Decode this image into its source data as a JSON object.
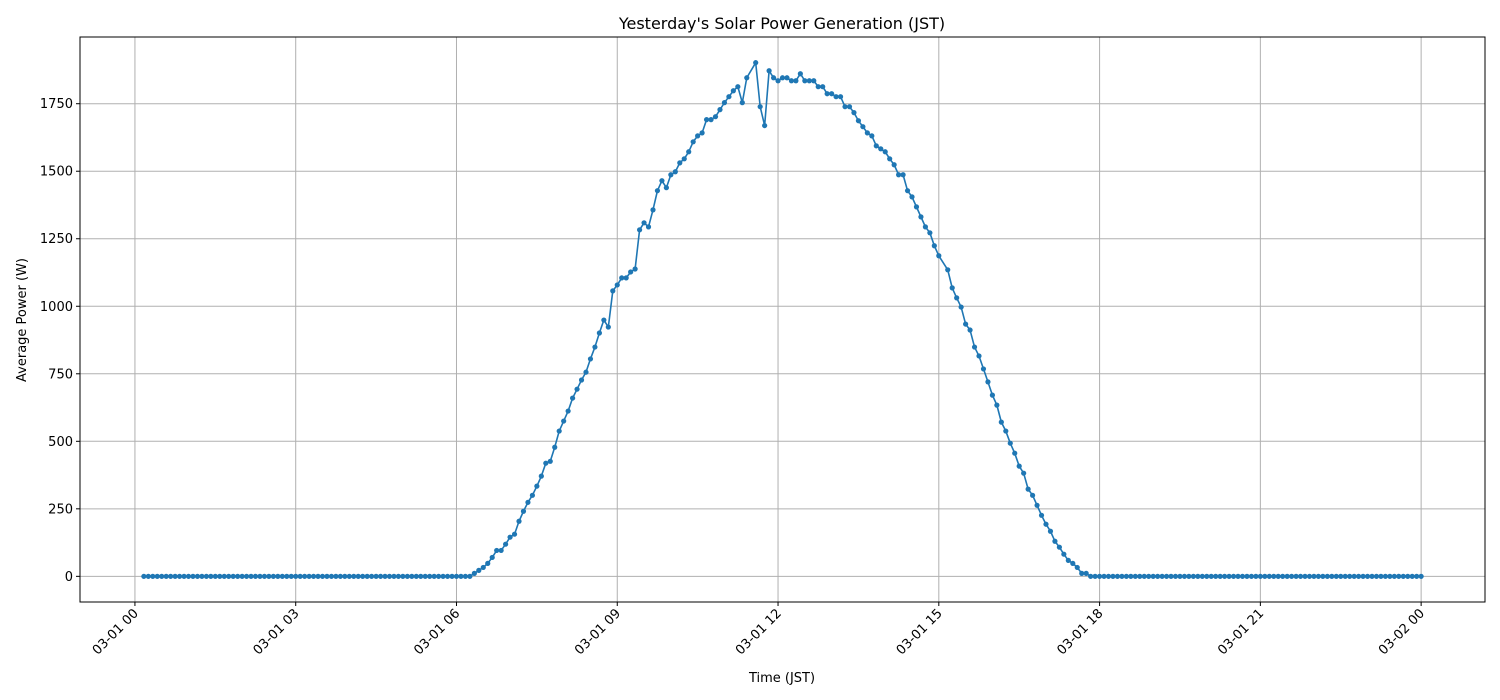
{
  "chart_data": {
    "type": "line",
    "title": "Yesterday's Solar Power Generation (JST)",
    "xlabel": "Time (JST)",
    "ylabel": "Average Power (W)",
    "grid": true,
    "marker": "circle",
    "line_color": "#1f77b4",
    "ylim": [
      -95,
      1997
    ],
    "yticks": [
      0,
      250,
      500,
      750,
      1000,
      1250,
      1500,
      1750
    ],
    "xticks": [
      "03-01 00",
      "03-01 03",
      "03-01 06",
      "03-01 09",
      "03-01 12",
      "03-01 15",
      "03-01 18",
      "03-01 21",
      "03-02 00"
    ],
    "series": [
      {
        "points": [
          [
            "03-01 00:10",
            0
          ],
          [
            "03-01 00:15",
            0
          ],
          [
            "03-01 00:20",
            0
          ],
          [
            "03-01 00:25",
            0
          ],
          [
            "03-01 00:30",
            0
          ],
          [
            "03-01 00:35",
            0
          ],
          [
            "03-01 00:40",
            0
          ],
          [
            "03-01 00:45",
            0
          ],
          [
            "03-01 00:50",
            0
          ],
          [
            "03-01 00:55",
            0
          ],
          [
            "03-01 01:00",
            0
          ],
          [
            "03-01 01:05",
            0
          ],
          [
            "03-01 01:10",
            0
          ],
          [
            "03-01 01:15",
            0
          ],
          [
            "03-01 01:20",
            0
          ],
          [
            "03-01 01:25",
            0
          ],
          [
            "03-01 01:30",
            0
          ],
          [
            "03-01 01:35",
            0
          ],
          [
            "03-01 01:40",
            0
          ],
          [
            "03-01 01:45",
            0
          ],
          [
            "03-01 01:50",
            0
          ],
          [
            "03-01 01:55",
            0
          ],
          [
            "03-01 02:00",
            0
          ],
          [
            "03-01 02:05",
            0
          ],
          [
            "03-01 02:10",
            0
          ],
          [
            "03-01 02:15",
            0
          ],
          [
            "03-01 02:20",
            0
          ],
          [
            "03-01 02:25",
            0
          ],
          [
            "03-01 02:30",
            0
          ],
          [
            "03-01 02:35",
            0
          ],
          [
            "03-01 02:40",
            0
          ],
          [
            "03-01 02:45",
            0
          ],
          [
            "03-01 02:50",
            0
          ],
          [
            "03-01 02:55",
            0
          ],
          [
            "03-01 03:00",
            0
          ],
          [
            "03-01 03:05",
            0
          ],
          [
            "03-01 03:10",
            0
          ],
          [
            "03-01 03:15",
            0
          ],
          [
            "03-01 03:20",
            0
          ],
          [
            "03-01 03:25",
            0
          ],
          [
            "03-01 03:30",
            0
          ],
          [
            "03-01 03:35",
            0
          ],
          [
            "03-01 03:40",
            0
          ],
          [
            "03-01 03:45",
            0
          ],
          [
            "03-01 03:50",
            0
          ],
          [
            "03-01 03:55",
            0
          ],
          [
            "03-01 04:00",
            0
          ],
          [
            "03-01 04:05",
            0
          ],
          [
            "03-01 04:10",
            0
          ],
          [
            "03-01 04:15",
            0
          ],
          [
            "03-01 04:20",
            0
          ],
          [
            "03-01 04:25",
            0
          ],
          [
            "03-01 04:30",
            0
          ],
          [
            "03-01 04:35",
            0
          ],
          [
            "03-01 04:40",
            0
          ],
          [
            "03-01 04:45",
            0
          ],
          [
            "03-01 04:50",
            0
          ],
          [
            "03-01 04:55",
            0
          ],
          [
            "03-01 05:00",
            0
          ],
          [
            "03-01 05:05",
            0
          ],
          [
            "03-01 05:10",
            0
          ],
          [
            "03-01 05:15",
            0
          ],
          [
            "03-01 05:20",
            0
          ],
          [
            "03-01 05:25",
            0
          ],
          [
            "03-01 05:30",
            0
          ],
          [
            "03-01 05:35",
            0
          ],
          [
            "03-01 05:40",
            0
          ],
          [
            "03-01 05:45",
            0
          ],
          [
            "03-01 05:50",
            0
          ],
          [
            "03-01 05:55",
            0
          ],
          [
            "03-01 06:00",
            0
          ],
          [
            "03-01 06:05",
            0
          ],
          [
            "03-01 06:10",
            0
          ],
          [
            "03-01 06:15",
            0
          ],
          [
            "03-01 06:20",
            11
          ],
          [
            "03-01 06:25",
            22
          ],
          [
            "03-01 06:30",
            33
          ],
          [
            "03-01 06:35",
            48
          ],
          [
            "03-01 06:40",
            70
          ],
          [
            "03-01 06:45",
            96
          ],
          [
            "03-01 06:50",
            96
          ],
          [
            "03-01 06:55",
            119
          ],
          [
            "03-01 07:00",
            145
          ],
          [
            "03-01 07:05",
            156
          ],
          [
            "03-01 07:10",
            204
          ],
          [
            "03-01 07:15",
            241
          ],
          [
            "03-01 07:20",
            274
          ],
          [
            "03-01 07:25",
            300
          ],
          [
            "03-01 07:30",
            334
          ],
          [
            "03-01 07:35",
            371
          ],
          [
            "03-01 07:40",
            419
          ],
          [
            "03-01 07:45",
            426
          ],
          [
            "03-01 07:50",
            478
          ],
          [
            "03-01 07:55",
            538
          ],
          [
            "03-01 08:00",
            575
          ],
          [
            "03-01 08:05",
            612
          ],
          [
            "03-01 08:10",
            660
          ],
          [
            "03-01 08:15",
            693
          ],
          [
            "03-01 08:20",
            727
          ],
          [
            "03-01 08:25",
            756
          ],
          [
            "03-01 08:30",
            805
          ],
          [
            "03-01 08:35",
            849
          ],
          [
            "03-01 08:40",
            901
          ],
          [
            "03-01 08:45",
            949
          ],
          [
            "03-01 08:50",
            923
          ],
          [
            "03-01 08:55",
            1057
          ],
          [
            "03-01 09:00",
            1079
          ],
          [
            "03-01 09:05",
            1105
          ],
          [
            "03-01 09:10",
            1105
          ],
          [
            "03-01 09:15",
            1127
          ],
          [
            "03-01 09:20",
            1138
          ],
          [
            "03-01 09:25",
            1283
          ],
          [
            "03-01 09:30",
            1309
          ],
          [
            "03-01 09:35",
            1294
          ],
          [
            "03-01 09:40",
            1357
          ],
          [
            "03-01 09:45",
            1428
          ],
          [
            "03-01 09:50",
            1465
          ],
          [
            "03-01 09:55",
            1439
          ],
          [
            "03-01 10:00",
            1487
          ],
          [
            "03-01 10:05",
            1498
          ],
          [
            "03-01 10:10",
            1531
          ],
          [
            "03-01 10:15",
            1546
          ],
          [
            "03-01 10:20",
            1572
          ],
          [
            "03-01 10:25",
            1609
          ],
          [
            "03-01 10:30",
            1631
          ],
          [
            "03-01 10:35",
            1642
          ],
          [
            "03-01 10:40",
            1691
          ],
          [
            "03-01 10:45",
            1691
          ],
          [
            "03-01 10:50",
            1702
          ],
          [
            "03-01 10:55",
            1728
          ],
          [
            "03-01 11:00",
            1754
          ],
          [
            "03-01 11:05",
            1776
          ],
          [
            "03-01 11:10",
            1798
          ],
          [
            "03-01 11:15",
            1813
          ],
          [
            "03-01 11:20",
            1754
          ],
          [
            "03-01 11:25",
            1846
          ],
          [
            "03-01 11:35",
            1902
          ],
          [
            "03-01 11:40",
            1739
          ],
          [
            "03-01 11:45",
            1669
          ],
          [
            "03-01 11:50",
            1872
          ],
          [
            "03-01 11:55",
            1846
          ],
          [
            "03-01 12:00",
            1835
          ],
          [
            "03-01 12:05",
            1846
          ],
          [
            "03-01 12:10",
            1846
          ],
          [
            "03-01 12:15",
            1835
          ],
          [
            "03-01 12:20",
            1835
          ],
          [
            "03-01 12:25",
            1861
          ],
          [
            "03-01 12:30",
            1835
          ],
          [
            "03-01 12:35",
            1835
          ],
          [
            "03-01 12:40",
            1835
          ],
          [
            "03-01 12:45",
            1813
          ],
          [
            "03-01 12:50",
            1813
          ],
          [
            "03-01 12:55",
            1787
          ],
          [
            "03-01 13:00",
            1787
          ],
          [
            "03-01 13:05",
            1776
          ],
          [
            "03-01 13:10",
            1776
          ],
          [
            "03-01 13:15",
            1739
          ],
          [
            "03-01 13:20",
            1739
          ],
          [
            "03-01 13:25",
            1717
          ],
          [
            "03-01 13:30",
            1687
          ],
          [
            "03-01 13:35",
            1665
          ],
          [
            "03-01 13:40",
            1642
          ],
          [
            "03-01 13:45",
            1631
          ],
          [
            "03-01 13:50",
            1594
          ],
          [
            "03-01 13:55",
            1583
          ],
          [
            "03-01 14:00",
            1572
          ],
          [
            "03-01 14:05",
            1546
          ],
          [
            "03-01 14:10",
            1524
          ],
          [
            "03-01 14:15",
            1487
          ],
          [
            "03-01 14:20",
            1487
          ],
          [
            "03-01 14:25",
            1428
          ],
          [
            "03-01 14:30",
            1405
          ],
          [
            "03-01 14:35",
            1368
          ],
          [
            "03-01 14:40",
            1331
          ],
          [
            "03-01 14:45",
            1294
          ],
          [
            "03-01 14:50",
            1272
          ],
          [
            "03-01 14:55",
            1224
          ],
          [
            "03-01 15:00",
            1187
          ],
          [
            "03-01 15:10",
            1135
          ],
          [
            "03-01 15:15",
            1068
          ],
          [
            "03-01 15:20",
            1031
          ],
          [
            "03-01 15:25",
            997
          ],
          [
            "03-01 15:30",
            934
          ],
          [
            "03-01 15:35",
            912
          ],
          [
            "03-01 15:40",
            849
          ],
          [
            "03-01 15:45",
            816
          ],
          [
            "03-01 15:50",
            768
          ],
          [
            "03-01 15:55",
            720
          ],
          [
            "03-01 16:00",
            671
          ],
          [
            "03-01 16:05",
            634
          ],
          [
            "03-01 16:10",
            571
          ],
          [
            "03-01 16:15",
            538
          ],
          [
            "03-01 16:20",
            493
          ],
          [
            "03-01 16:25",
            456
          ],
          [
            "03-01 16:30",
            408
          ],
          [
            "03-01 16:35",
            382
          ],
          [
            "03-01 16:40",
            323
          ],
          [
            "03-01 16:45",
            300
          ],
          [
            "03-01 16:50",
            263
          ],
          [
            "03-01 16:55",
            226
          ],
          [
            "03-01 17:00",
            193
          ],
          [
            "03-01 17:05",
            167
          ],
          [
            "03-01 17:10",
            130
          ],
          [
            "03-01 17:15",
            108
          ],
          [
            "03-01 17:20",
            82
          ],
          [
            "03-01 17:25",
            59
          ],
          [
            "03-01 17:30",
            48
          ],
          [
            "03-01 17:35",
            33
          ],
          [
            "03-01 17:40",
            11
          ],
          [
            "03-01 17:45",
            11
          ],
          [
            "03-01 17:50",
            0
          ],
          [
            "03-01 17:55",
            0
          ],
          [
            "03-01 18:00",
            0
          ],
          [
            "03-01 18:05",
            0
          ],
          [
            "03-01 18:10",
            0
          ],
          [
            "03-01 18:15",
            0
          ],
          [
            "03-01 18:20",
            0
          ],
          [
            "03-01 18:25",
            0
          ],
          [
            "03-01 18:30",
            0
          ],
          [
            "03-01 18:35",
            0
          ],
          [
            "03-01 18:40",
            0
          ],
          [
            "03-01 18:45",
            0
          ],
          [
            "03-01 18:50",
            0
          ],
          [
            "03-01 18:55",
            0
          ],
          [
            "03-01 19:00",
            0
          ],
          [
            "03-01 19:05",
            0
          ],
          [
            "03-01 19:10",
            0
          ],
          [
            "03-01 19:15",
            0
          ],
          [
            "03-01 19:20",
            0
          ],
          [
            "03-01 19:25",
            0
          ],
          [
            "03-01 19:30",
            0
          ],
          [
            "03-01 19:35",
            0
          ],
          [
            "03-01 19:40",
            0
          ],
          [
            "03-01 19:45",
            0
          ],
          [
            "03-01 19:50",
            0
          ],
          [
            "03-01 19:55",
            0
          ],
          [
            "03-01 20:00",
            0
          ],
          [
            "03-01 20:05",
            0
          ],
          [
            "03-01 20:10",
            0
          ],
          [
            "03-01 20:15",
            0
          ],
          [
            "03-01 20:20",
            0
          ],
          [
            "03-01 20:25",
            0
          ],
          [
            "03-01 20:30",
            0
          ],
          [
            "03-01 20:35",
            0
          ],
          [
            "03-01 20:40",
            0
          ],
          [
            "03-01 20:45",
            0
          ],
          [
            "03-01 20:50",
            0
          ],
          [
            "03-01 20:55",
            0
          ],
          [
            "03-01 21:00",
            0
          ],
          [
            "03-01 21:05",
            0
          ],
          [
            "03-01 21:10",
            0
          ],
          [
            "03-01 21:15",
            0
          ],
          [
            "03-01 21:20",
            0
          ],
          [
            "03-01 21:25",
            0
          ],
          [
            "03-01 21:30",
            0
          ],
          [
            "03-01 21:35",
            0
          ],
          [
            "03-01 21:40",
            0
          ],
          [
            "03-01 21:45",
            0
          ],
          [
            "03-01 21:50",
            0
          ],
          [
            "03-01 21:55",
            0
          ],
          [
            "03-01 22:00",
            0
          ],
          [
            "03-01 22:05",
            0
          ],
          [
            "03-01 22:10",
            0
          ],
          [
            "03-01 22:15",
            0
          ],
          [
            "03-01 22:20",
            0
          ],
          [
            "03-01 22:25",
            0
          ],
          [
            "03-01 22:30",
            0
          ],
          [
            "03-01 22:35",
            0
          ],
          [
            "03-01 22:40",
            0
          ],
          [
            "03-01 22:45",
            0
          ],
          [
            "03-01 22:50",
            0
          ],
          [
            "03-01 22:55",
            0
          ],
          [
            "03-01 23:00",
            0
          ],
          [
            "03-01 23:05",
            0
          ],
          [
            "03-01 23:10",
            0
          ],
          [
            "03-01 23:15",
            0
          ],
          [
            "03-01 23:20",
            0
          ],
          [
            "03-01 23:25",
            0
          ],
          [
            "03-01 23:30",
            0
          ],
          [
            "03-01 23:35",
            0
          ],
          [
            "03-01 23:40",
            0
          ],
          [
            "03-01 23:45",
            0
          ],
          [
            "03-01 23:50",
            0
          ],
          [
            "03-01 23:55",
            0
          ],
          [
            "03-02 00:00",
            0
          ]
        ]
      }
    ]
  }
}
